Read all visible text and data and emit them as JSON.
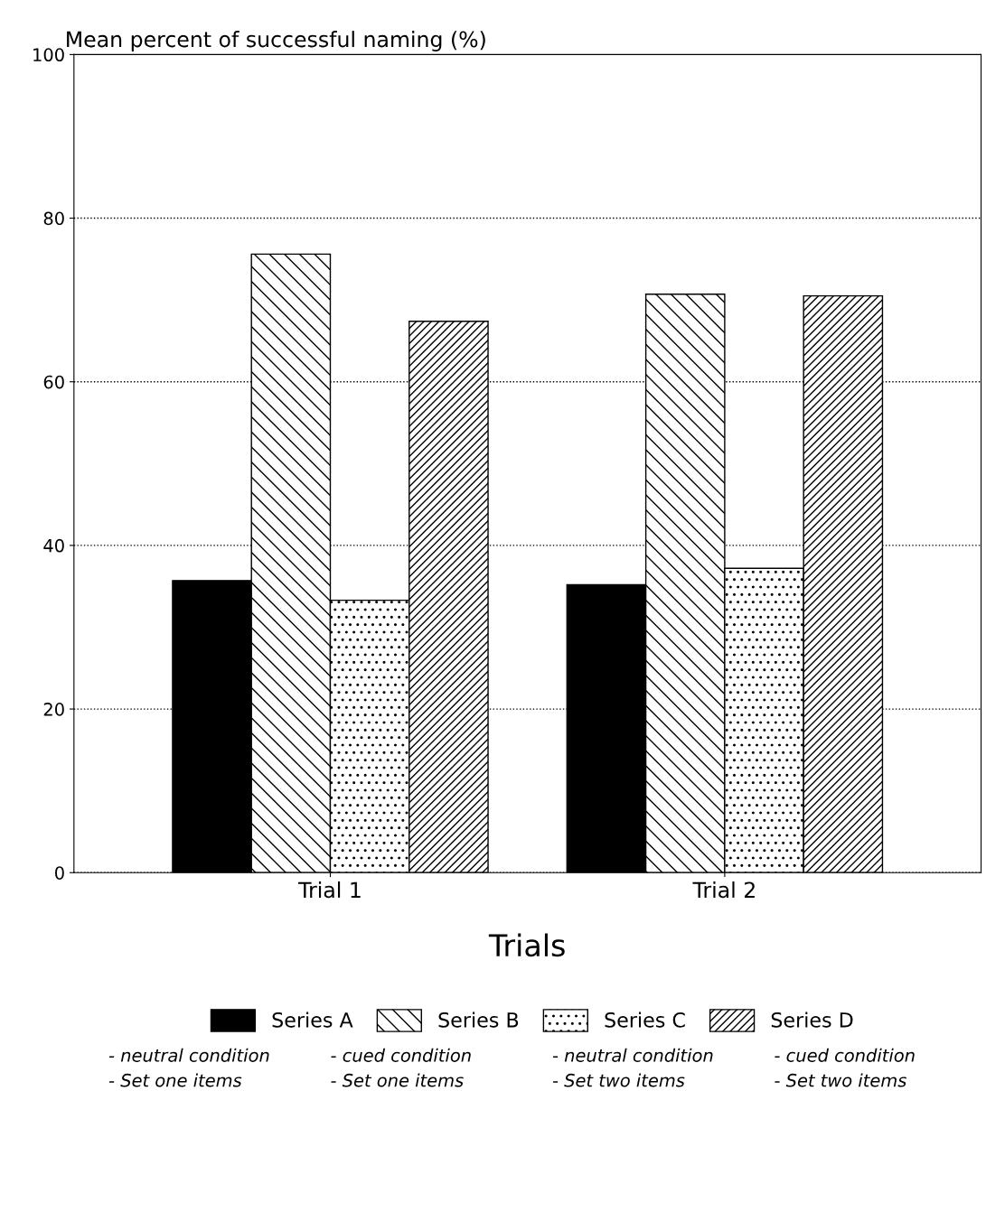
{
  "chart_data": {
    "type": "bar",
    "title": "Mean percent of successful naming (%)",
    "xlabel": "Trials",
    "categories": [
      "Trial 1",
      "Trial 2"
    ],
    "series": [
      {
        "name": "Series A",
        "color": "#000000",
        "values": [
          35.7,
          35.2
        ]
      },
      {
        "name": "Series B",
        "color": "#000000",
        "values": [
          75.6,
          70.7
        ]
      },
      {
        "name": "Series C",
        "color": "#000000",
        "values": [
          33.3,
          37.2
        ]
      },
      {
        "name": "Series D",
        "color": "#000000",
        "values": [
          67.4,
          70.5
        ]
      }
    ],
    "ylim": [
      0,
      100
    ],
    "yticks": [
      0,
      20,
      40,
      60,
      80,
      100
    ],
    "grid": "y",
    "legend": "bottom",
    "annotations": [
      "- neutral condition\n- Set one items",
      "- cued condition\n- Set one items",
      "- neutral condition\n- Set two items",
      "- cued condition\n- Set two items"
    ]
  }
}
